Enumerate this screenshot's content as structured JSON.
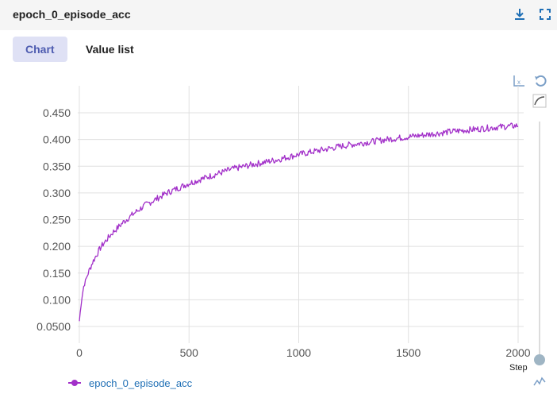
{
  "header": {
    "title": "epoch_0_episode_acc"
  },
  "tabs": [
    {
      "label": "Chart",
      "active": true
    },
    {
      "label": "Value list",
      "active": false
    }
  ],
  "icons": {
    "download": "download-icon",
    "fullscreen": "fullscreen-icon",
    "log_scale": "log-scale-icon",
    "reset": "reset-icon",
    "smoothing": "smoothing-icon",
    "sparkline": "sparkline-icon"
  },
  "slider": {
    "label": "Step"
  },
  "colors": {
    "series": "#a230c9",
    "accent_tab_bg": "#dfe1f5",
    "accent_tab_text": "#4d5bb0"
  },
  "chart_data": {
    "type": "line",
    "title": "",
    "xlabel": "",
    "ylabel": "",
    "xlim": [
      0,
      2000
    ],
    "ylim": [
      0.025,
      0.475
    ],
    "x_ticks": [
      "0",
      "500",
      "1000",
      "1500",
      "2000"
    ],
    "y_ticks": [
      "0.0500",
      "0.100",
      "0.150",
      "0.200",
      "0.250",
      "0.300",
      "0.350",
      "0.400",
      "0.450"
    ],
    "grid": true,
    "legend_position": "bottom-left",
    "series": [
      {
        "name": "epoch_0_episode_acc",
        "x": [
          0,
          10,
          20,
          40,
          60,
          80,
          100,
          150,
          200,
          250,
          300,
          400,
          500,
          600,
          700,
          800,
          900,
          1000,
          1100,
          1200,
          1300,
          1400,
          1500,
          1600,
          1700,
          1800,
          1900,
          2000
        ],
        "y": [
          0.06,
          0.1,
          0.125,
          0.15,
          0.17,
          0.185,
          0.2,
          0.225,
          0.245,
          0.262,
          0.277,
          0.3,
          0.318,
          0.332,
          0.345,
          0.354,
          0.362,
          0.372,
          0.38,
          0.388,
          0.394,
          0.4,
          0.405,
          0.41,
          0.415,
          0.419,
          0.423,
          0.426
        ]
      }
    ]
  }
}
